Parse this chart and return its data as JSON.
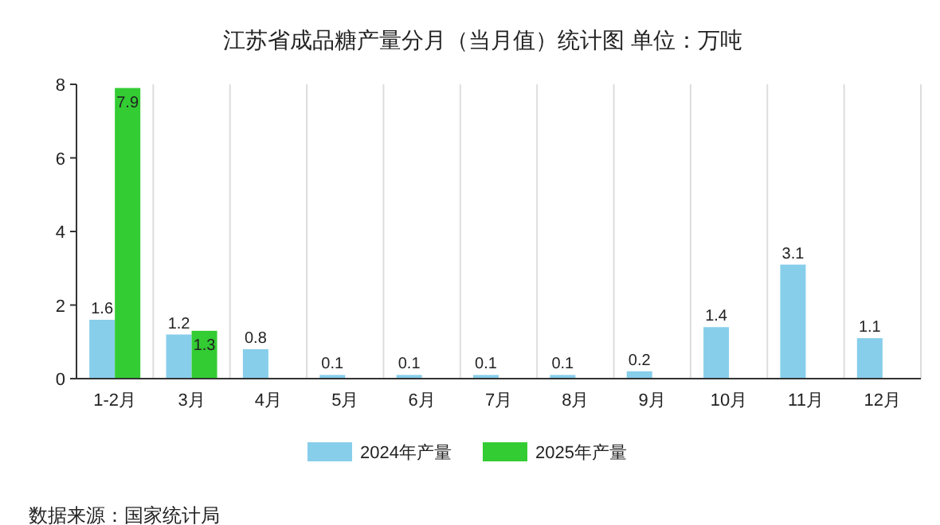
{
  "chart_data": {
    "type": "bar",
    "title": "江苏省成品糖产量分月（当月值）统计图 单位：万吨",
    "categories": [
      "1-2月",
      "3月",
      "4月",
      "5月",
      "6月",
      "7月",
      "8月",
      "9月",
      "10月",
      "11月",
      "12月"
    ],
    "series": [
      {
        "name": "2024年产量",
        "color": "#87ceeb",
        "values": [
          1.6,
          1.2,
          0.8,
          0.1,
          0.1,
          0.1,
          0.1,
          0.2,
          1.4,
          3.1,
          1.1
        ]
      },
      {
        "name": "2025年产量",
        "color": "#33cc33",
        "values": [
          7.9,
          1.3,
          null,
          null,
          null,
          null,
          null,
          null,
          null,
          null,
          null
        ]
      }
    ],
    "ylim": [
      0,
      8
    ],
    "yticks": [
      0,
      2,
      4,
      6,
      8
    ],
    "grid": "x",
    "legend": "bottom",
    "data_labels": true,
    "annotations": [
      "数据来源：国家统计局"
    ]
  }
}
